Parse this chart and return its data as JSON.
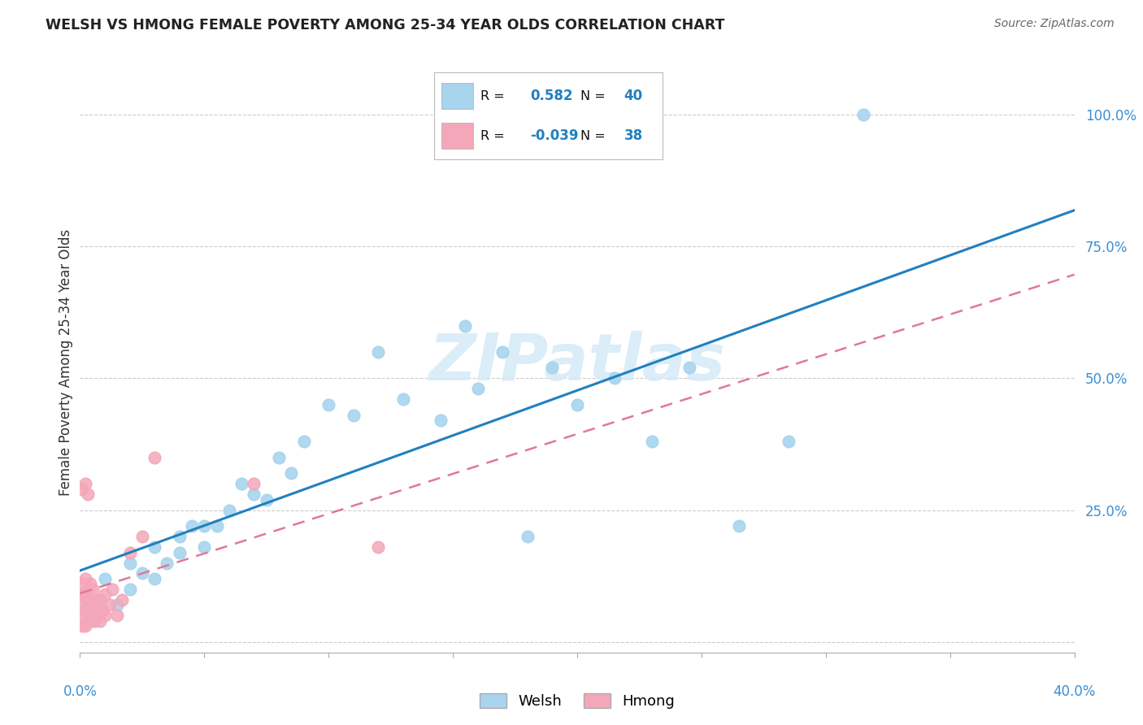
{
  "title": "WELSH VS HMONG FEMALE POVERTY AMONG 25-34 YEAR OLDS CORRELATION CHART",
  "source": "Source: ZipAtlas.com",
  "ylabel": "Female Poverty Among 25-34 Year Olds",
  "xlim": [
    0.0,
    0.4
  ],
  "ylim": [
    -0.02,
    1.08
  ],
  "yticks": [
    0.0,
    0.25,
    0.5,
    0.75,
    1.0
  ],
  "ytick_labels": [
    "",
    "25.0%",
    "50.0%",
    "75.0%",
    "100.0%"
  ],
  "xticks": [
    0.0,
    0.05,
    0.1,
    0.15,
    0.2,
    0.25,
    0.3,
    0.35,
    0.4
  ],
  "welsh_color": "#a8d4ed",
  "hmong_color": "#f4a7b9",
  "welsh_line_color": "#2080c0",
  "hmong_line_color": "#e07898",
  "welsh_R": 0.582,
  "welsh_N": 40,
  "hmong_R": -0.039,
  "hmong_N": 38,
  "watermark": "ZIPatlas",
  "welsh_x": [
    0.005,
    0.008,
    0.01,
    0.015,
    0.02,
    0.02,
    0.025,
    0.03,
    0.03,
    0.035,
    0.04,
    0.04,
    0.045,
    0.05,
    0.05,
    0.055,
    0.06,
    0.065,
    0.07,
    0.075,
    0.08,
    0.085,
    0.09,
    0.1,
    0.11,
    0.12,
    0.13,
    0.145,
    0.155,
    0.16,
    0.17,
    0.18,
    0.19,
    0.2,
    0.215,
    0.23,
    0.245,
    0.265,
    0.285,
    0.315
  ],
  "welsh_y": [
    0.05,
    0.08,
    0.12,
    0.07,
    0.1,
    0.15,
    0.13,
    0.12,
    0.18,
    0.15,
    0.17,
    0.2,
    0.22,
    0.18,
    0.22,
    0.22,
    0.25,
    0.3,
    0.28,
    0.27,
    0.35,
    0.32,
    0.38,
    0.45,
    0.43,
    0.55,
    0.46,
    0.42,
    0.6,
    0.48,
    0.55,
    0.2,
    0.52,
    0.45,
    0.5,
    0.38,
    0.52,
    0.22,
    0.38,
    1.0
  ],
  "hmong_x": [
    0.001,
    0.001,
    0.001,
    0.001,
    0.001,
    0.001,
    0.002,
    0.002,
    0.002,
    0.002,
    0.002,
    0.003,
    0.003,
    0.003,
    0.003,
    0.004,
    0.004,
    0.004,
    0.005,
    0.005,
    0.005,
    0.006,
    0.006,
    0.007,
    0.008,
    0.008,
    0.009,
    0.01,
    0.01,
    0.012,
    0.013,
    0.015,
    0.017,
    0.02,
    0.025,
    0.03,
    0.07,
    0.12
  ],
  "hmong_y": [
    0.03,
    0.05,
    0.07,
    0.09,
    0.11,
    0.29,
    0.03,
    0.06,
    0.09,
    0.12,
    0.3,
    0.04,
    0.07,
    0.1,
    0.28,
    0.04,
    0.08,
    0.11,
    0.04,
    0.07,
    0.1,
    0.04,
    0.08,
    0.06,
    0.04,
    0.08,
    0.06,
    0.05,
    0.09,
    0.07,
    0.1,
    0.05,
    0.08,
    0.17,
    0.2,
    0.35,
    0.3,
    0.18
  ],
  "background_color": "#ffffff",
  "grid_color": "#cccccc"
}
